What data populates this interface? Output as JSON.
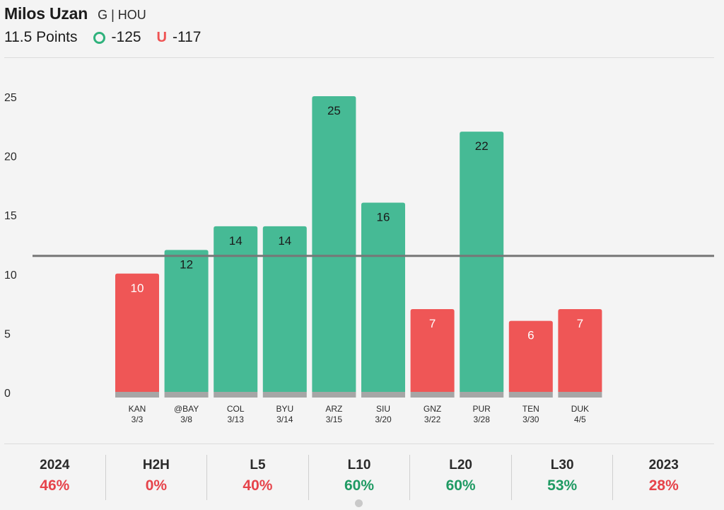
{
  "header": {
    "player_name": "Milos Uzan",
    "player_meta": "G | HOU",
    "line_label": "11.5 Points",
    "over_label": "O",
    "over_odds": "-125",
    "under_label": "U",
    "under_odds": "-117"
  },
  "colors": {
    "over": "#46ba95",
    "under": "#ef5656",
    "line": "#777777",
    "base": "#a6a6a6",
    "stat_green": "#1f9a63",
    "stat_red": "#e6434a"
  },
  "chart_data": {
    "type": "bar",
    "line_value": 11.5,
    "ylim": [
      0,
      25
    ],
    "yticks": [
      0,
      5,
      10,
      15,
      20,
      25
    ],
    "categories": [
      "KAN",
      "@BAY",
      "COL",
      "BYU",
      "ARZ",
      "SIU",
      "GNZ",
      "PUR",
      "TEN",
      "DUK"
    ],
    "dates": [
      "3/3",
      "3/8",
      "3/13",
      "3/14",
      "3/15",
      "3/20",
      "3/22",
      "3/28",
      "3/30",
      "4/5"
    ],
    "values": [
      10,
      12,
      14,
      14,
      25,
      16,
      7,
      22,
      6,
      7
    ],
    "result": [
      "under",
      "over",
      "over",
      "over",
      "over",
      "over",
      "under",
      "over",
      "under",
      "under"
    ]
  },
  "stats": [
    {
      "label": "2024",
      "value": "46%",
      "status": "red"
    },
    {
      "label": "H2H",
      "value": "0%",
      "status": "red"
    },
    {
      "label": "L5",
      "value": "40%",
      "status": "red"
    },
    {
      "label": "L10",
      "value": "60%",
      "status": "green"
    },
    {
      "label": "L20",
      "value": "60%",
      "status": "green"
    },
    {
      "label": "L30",
      "value": "53%",
      "status": "green"
    },
    {
      "label": "2023",
      "value": "28%",
      "status": "red"
    }
  ]
}
